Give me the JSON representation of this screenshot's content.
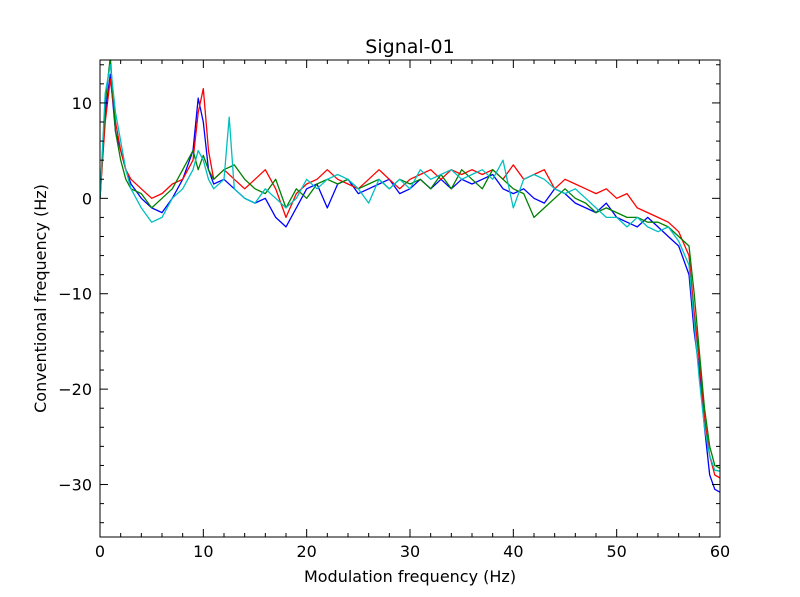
{
  "chart_data": {
    "type": "line",
    "title": "Signal-01",
    "xlabel": "Modulation frequency (Hz)",
    "ylabel": "Conventional frequency (Hz)",
    "xlim": [
      0,
      60
    ],
    "ylim": [
      -35.5,
      14.5
    ],
    "xticks": [
      0,
      10,
      20,
      30,
      40,
      50,
      60
    ],
    "yticks": [
      10,
      0,
      -10,
      -20,
      -30
    ],
    "ytick_labels": [
      "10",
      "0",
      "−10",
      "−20",
      "−30"
    ],
    "grid": false,
    "legend": "none",
    "series": [
      {
        "color": "#0000ff",
        "x": [
          0,
          0.5,
          1,
          1.5,
          2,
          2.5,
          3,
          4,
          5,
          6,
          7,
          8,
          9,
          9.5,
          10,
          10.5,
          11,
          12,
          13,
          14,
          15,
          16,
          17,
          18,
          19,
          20,
          21,
          22,
          23,
          24,
          25,
          26,
          27,
          28,
          29,
          30,
          31,
          32,
          33,
          34,
          35,
          36,
          37,
          38,
          39,
          40,
          41,
          42,
          43,
          44,
          45,
          46,
          47,
          48,
          49,
          50,
          51,
          52,
          53,
          54,
          55,
          56,
          57,
          57.5,
          58,
          58.5,
          59,
          59.5,
          60
        ],
        "y": [
          0,
          9,
          13,
          7,
          5,
          3,
          1.5,
          0,
          -1,
          -1.5,
          0,
          2,
          5,
          10.5,
          8,
          3,
          1.5,
          2,
          1,
          0,
          -0.5,
          0,
          -2,
          -3,
          -1,
          1,
          1.5,
          -1,
          1.5,
          2,
          0.5,
          1,
          1.5,
          2,
          0.5,
          1,
          2,
          1,
          2,
          1,
          2,
          1.5,
          2,
          2.5,
          1,
          0.5,
          1,
          0,
          -0.5,
          1,
          0.5,
          -0.5,
          -1,
          -1.5,
          -0.5,
          -2,
          -2.5,
          -3,
          -2,
          -3,
          -4,
          -5,
          -8,
          -14,
          -18,
          -24,
          -29,
          -30.5,
          -30.8
        ]
      },
      {
        "color": "#ff0000",
        "x": [
          0,
          0.5,
          1,
          1.5,
          2,
          2.5,
          3,
          4,
          5,
          6,
          7,
          8,
          9,
          9.5,
          10,
          10.5,
          11,
          12,
          13,
          14,
          15,
          16,
          17,
          18,
          19,
          20,
          21,
          22,
          23,
          24,
          25,
          26,
          27,
          28,
          29,
          30,
          31,
          32,
          33,
          34,
          35,
          36,
          37,
          38,
          39,
          40,
          41,
          42,
          43,
          44,
          45,
          46,
          47,
          48,
          49,
          50,
          51,
          52,
          53,
          54,
          55,
          56,
          57,
          57.5,
          58,
          58.5,
          59,
          59.5,
          60
        ],
        "y": [
          0,
          8,
          12.5,
          8,
          5,
          3,
          2,
          1,
          0,
          0.5,
          1.5,
          2,
          4,
          9,
          11.5,
          5,
          2,
          3,
          2,
          1,
          2,
          3,
          1,
          -2,
          0.5,
          1.5,
          2,
          3,
          2,
          1.5,
          1,
          2,
          3,
          2,
          1,
          2,
          2.5,
          3,
          2,
          3,
          2.5,
          3,
          2.5,
          3,
          2,
          3.5,
          2,
          2.5,
          3,
          1,
          2,
          1.5,
          1,
          0.5,
          1,
          0,
          0.5,
          -1,
          -1.5,
          -2,
          -2.5,
          -3.5,
          -6,
          -12,
          -17,
          -23,
          -27,
          -29,
          -29.3
        ]
      },
      {
        "color": "#008000",
        "x": [
          0,
          0.5,
          1,
          1.5,
          2,
          2.5,
          3,
          4,
          5,
          6,
          7,
          8,
          9,
          9.5,
          10,
          10.5,
          11,
          12,
          13,
          14,
          15,
          16,
          17,
          18,
          19,
          20,
          21,
          22,
          23,
          24,
          25,
          26,
          27,
          28,
          29,
          30,
          31,
          32,
          33,
          34,
          35,
          36,
          37,
          38,
          39,
          40,
          41,
          42,
          43,
          44,
          45,
          46,
          47,
          48,
          49,
          50,
          51,
          52,
          53,
          54,
          55,
          56,
          57,
          57.5,
          58,
          58.5,
          59,
          59.5,
          60
        ],
        "y": [
          0,
          10,
          14.8,
          7,
          4,
          2,
          1,
          0.5,
          -1,
          0,
          1,
          3,
          5,
          3,
          4.5,
          3,
          2,
          3,
          3.5,
          2,
          1,
          0.5,
          2,
          -1,
          1,
          0,
          1.5,
          2,
          1.5,
          2,
          1,
          1.5,
          2,
          1,
          2,
          1.5,
          2,
          1,
          2.5,
          1,
          3,
          2,
          1,
          3,
          2,
          1,
          0.5,
          -2,
          -1,
          0,
          1,
          0,
          -0.5,
          -1.5,
          -1,
          -1.5,
          -2,
          -2,
          -2.5,
          -2.5,
          -3,
          -4,
          -5,
          -10,
          -16,
          -22,
          -26,
          -28,
          -28.3
        ]
      },
      {
        "color": "#00bfbf",
        "x": [
          0,
          0.5,
          1,
          1.5,
          2,
          2.5,
          3,
          4,
          5,
          6,
          7,
          8,
          9,
          9.5,
          10,
          10.5,
          11,
          12,
          12.5,
          13,
          14,
          15,
          16,
          17,
          18,
          19,
          20,
          21,
          22,
          23,
          24,
          25,
          26,
          27,
          28,
          29,
          30,
          31,
          32,
          33,
          34,
          35,
          36,
          37,
          38,
          39,
          40,
          41,
          42,
          43,
          44,
          45,
          46,
          47,
          48,
          49,
          50,
          51,
          52,
          53,
          54,
          55,
          56,
          57,
          57.5,
          58,
          58.5,
          59,
          59.5,
          60
        ],
        "y": [
          0,
          11,
          14,
          9,
          6,
          3,
          1,
          -1,
          -2.5,
          -2,
          0,
          1,
          3,
          5,
          4,
          2,
          1,
          2,
          8.5,
          1,
          0,
          -0.5,
          1,
          0,
          -1,
          0,
          2,
          1,
          2,
          2.5,
          2,
          1,
          -0.5,
          2,
          1,
          2,
          1,
          3,
          2,
          2.5,
          3,
          2,
          2.5,
          3,
          2,
          4,
          -1,
          2,
          2.5,
          2,
          1,
          0.5,
          1,
          0,
          -1,
          -2,
          -2,
          -3,
          -2,
          -3,
          -3.5,
          -3,
          -4.5,
          -7,
          -13,
          -19,
          -24,
          -27,
          -28.5,
          -28.6
        ]
      }
    ]
  }
}
